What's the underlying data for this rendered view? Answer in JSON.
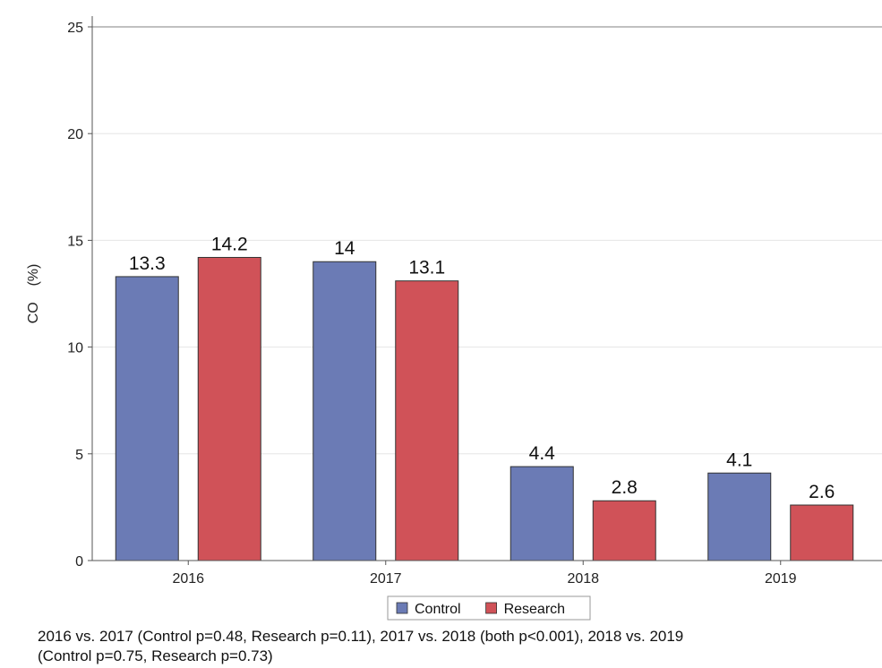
{
  "chart_data": {
    "type": "bar",
    "title": "",
    "xlabel": "",
    "ylabel": "CO    (%)",
    "ylim": [
      0,
      25
    ],
    "yticks": [
      0,
      5,
      10,
      15,
      20,
      25
    ],
    "grid": true,
    "legend_position": "bottom-center",
    "categories": [
      "2016",
      "2017",
      "2018",
      "2019"
    ],
    "series": [
      {
        "name": "Control",
        "color": "#6b7bb5",
        "values": [
          13.3,
          14,
          4.4,
          4.1
        ],
        "labels": [
          "13.3",
          "14",
          "4.4",
          "4.1"
        ]
      },
      {
        "name": "Research",
        "color": "#d05258",
        "values": [
          14.2,
          13.1,
          2.8,
          2.6
        ],
        "labels": [
          "14.2",
          "13.1",
          "2.8",
          "2.6"
        ]
      }
    ]
  },
  "footnote": {
    "line1": "2016 vs. 2017 (Control p=0.48, Research p=0.11), 2017 vs. 2018 (both p<0.001), 2018 vs. 2019",
    "line2": "(Control p=0.75, Research p=0.73)"
  }
}
